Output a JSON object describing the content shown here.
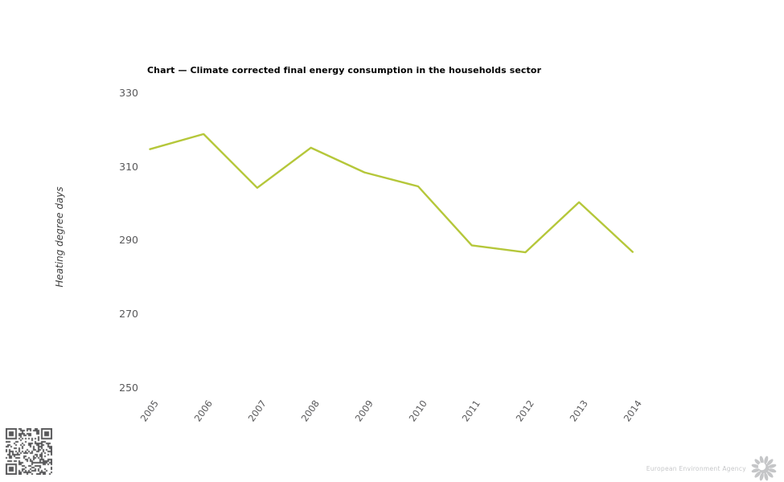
{
  "chart_data": {
    "type": "line",
    "title": "Chart — Climate corrected final energy consumption in the households sector",
    "x": [
      2005,
      2006,
      2007,
      2008,
      2009,
      2010,
      2011,
      2012,
      2013,
      2014
    ],
    "series": [
      {
        "name": "Heating degree days",
        "values": [
          314.8,
          318.9,
          304.3,
          315.2,
          308.5,
          304.7,
          288.7,
          286.8,
          300.4,
          286.9
        ],
        "color": "#b5c73a"
      }
    ],
    "xlabel": "",
    "ylabel": "Heating degree days",
    "ylim": [
      250,
      330
    ],
    "yticks": [
      330,
      310,
      290,
      270,
      250
    ],
    "grid": false,
    "legend": "none",
    "axis_lines": false
  },
  "colors": {
    "line": "#b5c73a",
    "tick_label": "#58585a",
    "axis_title": "#404040",
    "title_text": "#000000",
    "footer_text": "#c6c7c9",
    "qr": "#58585a",
    "logo": "#c5c6c8"
  },
  "footer": {
    "agency_label": "European Environment Agency",
    "logo_icon": "eea-sunflower-icon",
    "qr_icon": "qr-code"
  }
}
